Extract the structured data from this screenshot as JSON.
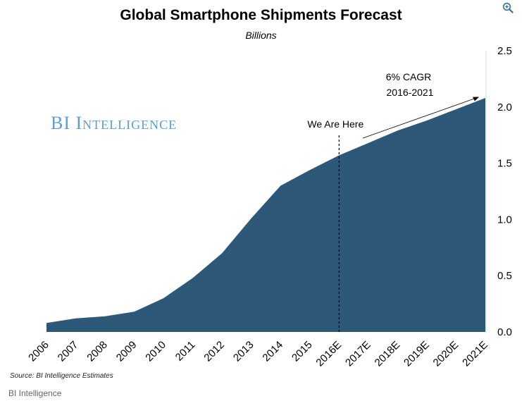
{
  "chart_data": {
    "type": "area",
    "title": "Global Smartphone Shipments Forecast",
    "subtitle": "Billions",
    "categories": [
      "2006",
      "2007",
      "2008",
      "2009",
      "2010",
      "2011",
      "2012",
      "2013",
      "2014",
      "2015",
      "2016E",
      "2017E",
      "2018E",
      "2019E",
      "2020E",
      "2021E"
    ],
    "series": [
      {
        "values": [
          0.08,
          0.12,
          0.14,
          0.18,
          0.3,
          0.48,
          0.7,
          1.01,
          1.3,
          1.44,
          1.57,
          1.68,
          1.79,
          1.88,
          1.98,
          2.08
        ],
        "color": "#2e5877"
      }
    ],
    "ylim": [
      0,
      2.5
    ],
    "yticks": [
      "0.0",
      "0.5",
      "1.0",
      "1.5",
      "2.0",
      "2.5"
    ],
    "y_axis_position": "right",
    "grid": false,
    "annotations": {
      "marker_category": "2016E",
      "marker_label": "We Are Here",
      "cagr_line1": "6% CAGR",
      "cagr_line2": "2016-2021"
    }
  },
  "watermark": "BI Intelligence",
  "source": "Source: BI Intelligence Estimates",
  "footer": "BI Intelligence",
  "colors": {
    "area": "#2e5877",
    "watermark": "#5b9fd6"
  },
  "icons": {
    "zoom": "zoom-in-icon"
  }
}
